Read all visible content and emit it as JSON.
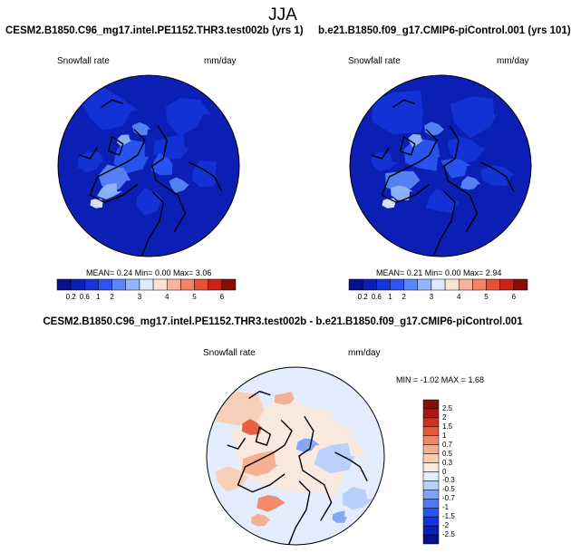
{
  "figure_title": "JJA",
  "colors": {
    "full_field": [
      "#0a0f8c",
      "#0b1fb4",
      "#1533d8",
      "#2a55f0",
      "#5a86f7",
      "#93b6f9",
      "#dfeaff",
      "#fde3d2",
      "#f8b39a",
      "#f28462",
      "#e65034",
      "#c92116",
      "#8a0c09"
    ],
    "difference": [
      "#0a0f8c",
      "#0b1fb4",
      "#1533d8",
      "#2a55f0",
      "#4f79f4",
      "#7fa3f7",
      "#b7cffb",
      "#e3edfd",
      "#fbe9dd",
      "#f9cdb4",
      "#f6ad8d",
      "#f08663",
      "#e65a3c",
      "#d42f1d",
      "#b51410",
      "#8a0c09"
    ],
    "land_outline": "#000000"
  },
  "chart_data": [
    {
      "type": "heatmap",
      "panel": "top-left",
      "title": "CESM2.B1850.C96_mg17.intel.PE1152.THR3.test002b (yrs 1)",
      "variable": "Snowfall rate",
      "units": "mm/day",
      "projection": "north polar stereographic",
      "stats_text": "MEAN=  0.24  Min=  0.00  Max=  3.06",
      "mean": 0.24,
      "min": 0.0,
      "max": 3.06,
      "colorbar": {
        "orientation": "horizontal",
        "levels": [
          "0.2",
          "0.6",
          "1",
          "2",
          "3",
          "4",
          "5",
          "6"
        ],
        "label_slots": [
          1,
          2,
          3,
          4,
          6,
          8,
          10,
          12
        ]
      }
    },
    {
      "type": "heatmap",
      "panel": "top-right",
      "title": "b.e21.B1850.f09_g17.CMIP6-piControl.001 (yrs 101)",
      "variable": "Snowfall rate",
      "units": "mm/day",
      "projection": "north polar stereographic",
      "stats_text": "MEAN=  0.21  Min=  0.00  Max=  2.94",
      "mean": 0.21,
      "min": 0.0,
      "max": 2.94,
      "colorbar": {
        "orientation": "horizontal",
        "levels": [
          "0.2",
          "0.6",
          "1",
          "2",
          "3",
          "4",
          "5",
          "6"
        ],
        "label_slots": [
          1,
          2,
          3,
          4,
          6,
          8,
          10,
          12
        ]
      }
    },
    {
      "type": "heatmap",
      "panel": "bottom-center",
      "title": "CESM2.B1850.C96_mg17.intel.PE1152.THR3.test002b - b.e21.B1850.f09_g17.CMIP6-piControl.001",
      "variable": "Snowfall rate",
      "units": "mm/day",
      "projection": "north polar stereographic",
      "stats_text": "MIN = -1.02 MAX =   1.68",
      "min": -1.02,
      "max": 1.68,
      "colorbar": {
        "orientation": "vertical",
        "levels": [
          "2.5",
          "2",
          "1.5",
          "1",
          "0.7",
          "0.5",
          "0.3",
          "0",
          "-0.3",
          "-0.5",
          "-0.7",
          "-1",
          "-1.5",
          "-2",
          "-2.5"
        ]
      }
    }
  ]
}
